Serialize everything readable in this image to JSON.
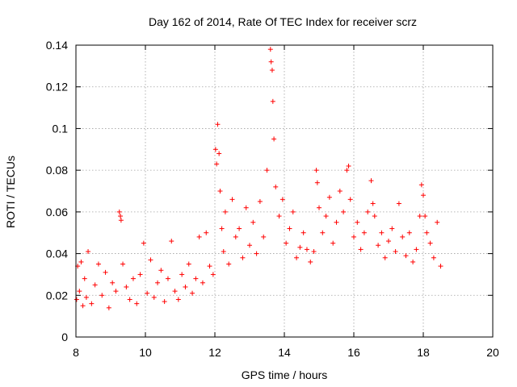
{
  "chart_data": {
    "type": "scatter",
    "title": "Day 162 of 2014, Rate Of TEC Index for receiver scrz",
    "xlabel": "GPS time / hours",
    "ylabel": "ROTI / TECUs",
    "xlim": [
      8,
      20
    ],
    "ylim": [
      0,
      0.14
    ],
    "xticks": [
      8,
      10,
      12,
      14,
      16,
      18,
      20
    ],
    "yticks": [
      0,
      0.02,
      0.04,
      0.06,
      0.08,
      0.1,
      0.12,
      0.14
    ],
    "xtick_labels": [
      "8",
      "10",
      "12",
      "14",
      "16",
      "18",
      "20"
    ],
    "ytick_labels": [
      "0",
      "0.02",
      "0.04",
      "0.06",
      "0.08",
      "0.1",
      "0.12",
      "0.14"
    ],
    "grid": true,
    "marker": "+",
    "color": "#ff0000",
    "series": [
      {
        "name": "ROTI",
        "x": [
          8.02,
          8.05,
          8.1,
          8.15,
          8.2,
          8.25,
          8.3,
          8.35,
          8.45,
          8.55,
          8.65,
          8.75,
          8.85,
          8.95,
          9.05,
          9.15,
          9.25,
          9.28,
          9.3,
          9.35,
          9.45,
          9.55,
          9.65,
          9.75,
          9.85,
          9.95,
          10.05,
          10.15,
          10.25,
          10.35,
          10.45,
          10.55,
          10.65,
          10.75,
          10.85,
          10.95,
          11.05,
          11.15,
          11.25,
          11.35,
          11.45,
          11.55,
          11.65,
          11.75,
          11.85,
          11.95,
          12.02,
          12.05,
          12.08,
          12.12,
          12.15,
          12.2,
          12.25,
          12.3,
          12.4,
          12.5,
          12.6,
          12.7,
          12.8,
          12.9,
          13.0,
          13.1,
          13.2,
          13.3,
          13.4,
          13.5,
          13.6,
          13.62,
          13.65,
          13.67,
          13.7,
          13.75,
          13.85,
          13.95,
          14.05,
          14.15,
          14.25,
          14.35,
          14.45,
          14.55,
          14.65,
          14.75,
          14.85,
          14.92,
          14.95,
          15.0,
          15.1,
          15.2,
          15.3,
          15.4,
          15.5,
          15.6,
          15.7,
          15.8,
          15.85,
          15.9,
          16.0,
          16.1,
          16.2,
          16.3,
          16.4,
          16.5,
          16.55,
          16.6,
          16.7,
          16.8,
          16.9,
          17.0,
          17.1,
          17.2,
          17.3,
          17.4,
          17.5,
          17.6,
          17.7,
          17.8,
          17.9,
          17.95,
          18.0,
          18.05,
          18.1,
          18.2,
          18.3,
          18.4,
          18.5
        ],
        "y": [
          0.018,
          0.034,
          0.022,
          0.036,
          0.015,
          0.028,
          0.019,
          0.041,
          0.016,
          0.025,
          0.035,
          0.02,
          0.031,
          0.014,
          0.026,
          0.022,
          0.06,
          0.058,
          0.056,
          0.035,
          0.024,
          0.018,
          0.028,
          0.016,
          0.03,
          0.045,
          0.021,
          0.037,
          0.019,
          0.026,
          0.032,
          0.017,
          0.028,
          0.046,
          0.022,
          0.018,
          0.03,
          0.024,
          0.035,
          0.021,
          0.028,
          0.048,
          0.026,
          0.05,
          0.034,
          0.03,
          0.09,
          0.083,
          0.102,
          0.088,
          0.07,
          0.052,
          0.041,
          0.06,
          0.035,
          0.066,
          0.048,
          0.052,
          0.038,
          0.062,
          0.044,
          0.055,
          0.04,
          0.065,
          0.048,
          0.08,
          0.138,
          0.132,
          0.128,
          0.113,
          0.095,
          0.072,
          0.058,
          0.066,
          0.045,
          0.052,
          0.06,
          0.038,
          0.043,
          0.05,
          0.042,
          0.036,
          0.041,
          0.08,
          0.074,
          0.062,
          0.05,
          0.058,
          0.067,
          0.045,
          0.055,
          0.07,
          0.06,
          0.08,
          0.082,
          0.066,
          0.048,
          0.055,
          0.042,
          0.05,
          0.06,
          0.075,
          0.064,
          0.058,
          0.044,
          0.05,
          0.038,
          0.046,
          0.052,
          0.041,
          0.064,
          0.048,
          0.039,
          0.05,
          0.036,
          0.042,
          0.058,
          0.073,
          0.068,
          0.058,
          0.05,
          0.045,
          0.038,
          0.055,
          0.034
        ],
        "note": "representative sample of the dense red '+' markers"
      }
    ]
  }
}
